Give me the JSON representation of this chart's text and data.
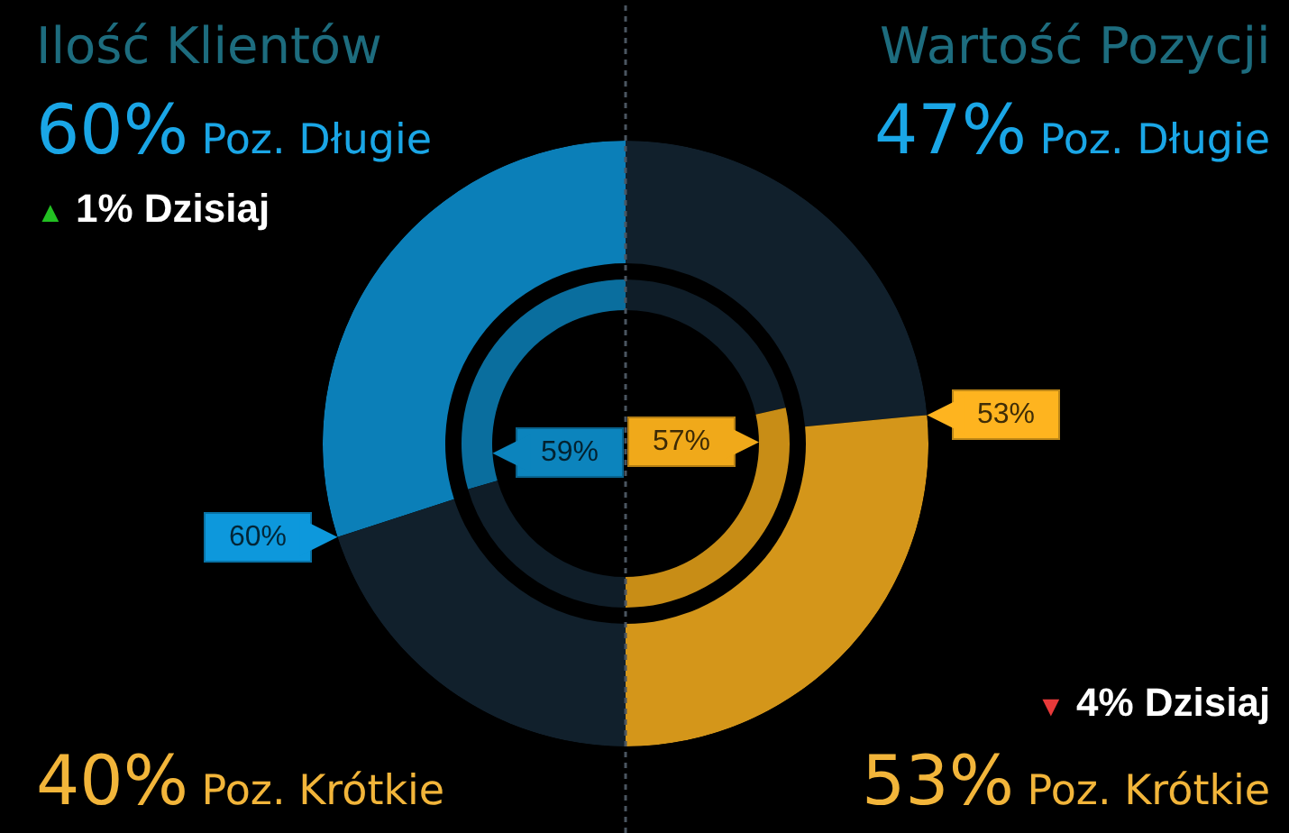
{
  "chart_data": [
    {
      "type": "donut",
      "title": "Ilość Klientów",
      "categories": [
        null,
        null
      ],
      "series": [
        {
          "values": [
            60,
            40
          ],
          "colors": [
            "#0b7fb8",
            "#11202c"
          ],
          "value_labels": [
            "60%",
            null
          ]
        },
        {
          "values": [
            59,
            41
          ],
          "colors": [
            "#0a6e9e",
            "#0f1d28"
          ],
          "value_labels": [
            "59%",
            null
          ]
        }
      ],
      "annotations": [
        "60% Poz. Długie",
        "40% Poz. Krótkie",
        "▲ 1% Dzisiaj"
      ]
    },
    {
      "type": "donut",
      "title": "Wartość Pozycji",
      "categories": [
        null,
        null
      ],
      "series": [
        {
          "values": [
            47,
            53
          ],
          "colors": [
            "#11202c",
            "#d4961a"
          ],
          "value_labels": [
            null,
            "53%"
          ]
        },
        {
          "values": [
            43,
            57
          ],
          "colors": [
            "#0f1d28",
            "#c88d16"
          ],
          "value_labels": [
            null,
            "57%"
          ]
        }
      ],
      "annotations": [
        "47% Poz. Długie",
        "53% Poz. Krótkie",
        "▼ 4% Dzisiaj"
      ]
    }
  ]
}
